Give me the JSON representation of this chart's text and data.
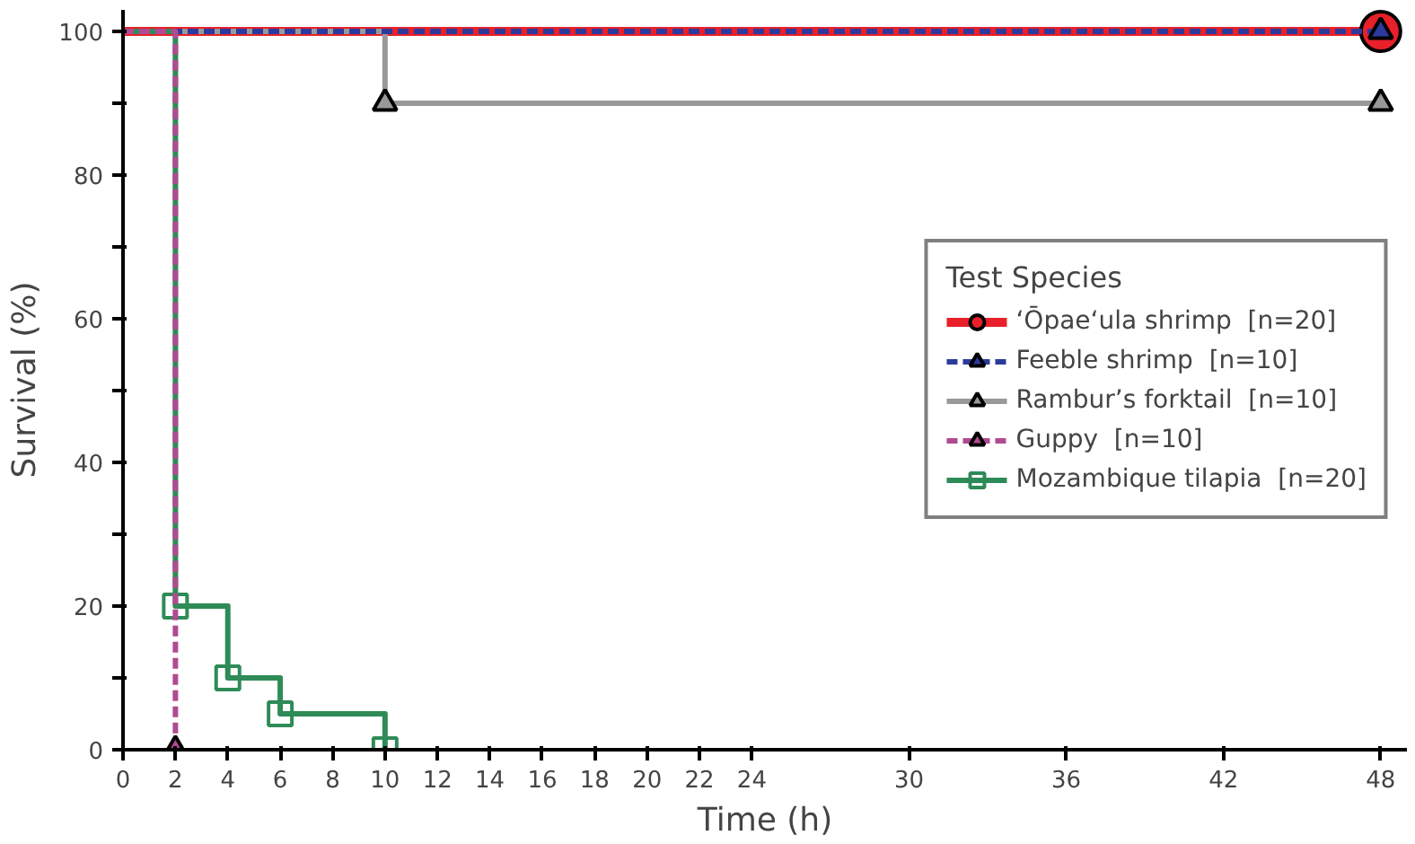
{
  "chart_data": {
    "type": "step",
    "xlabel": "Time (h)",
    "ylabel": "Survival (%)",
    "legend_title": "Test Species",
    "xlim": [
      0,
      49
    ],
    "xticks": [
      0,
      2,
      4,
      6,
      8,
      10,
      12,
      14,
      16,
      18,
      20,
      22,
      24,
      30,
      36,
      42,
      48
    ],
    "ylim": [
      0,
      103
    ],
    "yticks": [
      0,
      {
        "value": 10,
        "label": null
      },
      20,
      {
        "value": 30,
        "label": null
      },
      40,
      {
        "value": 50,
        "label": null
      },
      60,
      {
        "value": 70,
        "label": null
      },
      80,
      {
        "value": 90,
        "label": null
      },
      100
    ],
    "grid": false,
    "legend": "right",
    "series": [
      {
        "name": "‘Ōpae‘ula shrimp  [n=20]",
        "color": "#e8202a",
        "marker": "circle",
        "line_style": "solid",
        "x": [
          0,
          48
        ],
        "values": [
          100,
          100
        ]
      },
      {
        "name": "Feeble shrimp  [n=10]",
        "color": "#2b3a9c",
        "marker": "triangle",
        "line_style": "dashed",
        "x": [
          0,
          48
        ],
        "values": [
          100,
          100
        ]
      },
      {
        "name": "Rambur’s forktail  [n=10]",
        "color": "#999999",
        "marker": "triangle",
        "line_style": "solid",
        "x": [
          0,
          10,
          48
        ],
        "values": [
          100,
          90,
          90
        ]
      },
      {
        "name": "Guppy  [n=10]",
        "color": "#b04a93",
        "marker": "triangle",
        "line_style": "dashed",
        "x": [
          0,
          2
        ],
        "values": [
          100,
          0
        ]
      },
      {
        "name": "Mozambique tilapia  [n=20]",
        "color": "#2e8b57",
        "marker": "square",
        "line_style": "solid",
        "x": [
          0,
          2,
          4,
          6,
          10
        ],
        "values": [
          100,
          20,
          10,
          5,
          0
        ]
      }
    ]
  }
}
